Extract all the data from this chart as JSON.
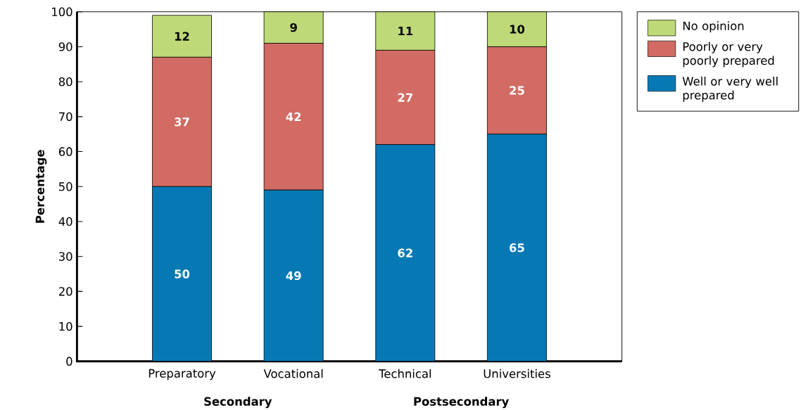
{
  "chart_data": {
    "type": "bar",
    "stacked": true,
    "ylabel": "Percentage",
    "categories": [
      "Preparatory",
      "Vocational",
      "Technical",
      "Universities"
    ],
    "series": [
      {
        "name": "Well or very well prepared",
        "color": "#0679b4",
        "values": [
          50,
          49,
          62,
          65
        ]
      },
      {
        "name": "Poorly or very poorly prepared",
        "color": "#d16b63",
        "values": [
          37,
          42,
          27,
          25
        ]
      },
      {
        "name": "No opinion",
        "color": "#bed977",
        "values": [
          12,
          9,
          11,
          10
        ]
      }
    ],
    "ylim": [
      0,
      100
    ],
    "yticks": [
      0,
      10,
      20,
      30,
      40,
      50,
      60,
      70,
      80,
      90,
      100
    ],
    "data_labels": true,
    "legend": "right",
    "grid": false,
    "annotations": [
      "Secondary",
      "Postsecondary"
    ]
  }
}
